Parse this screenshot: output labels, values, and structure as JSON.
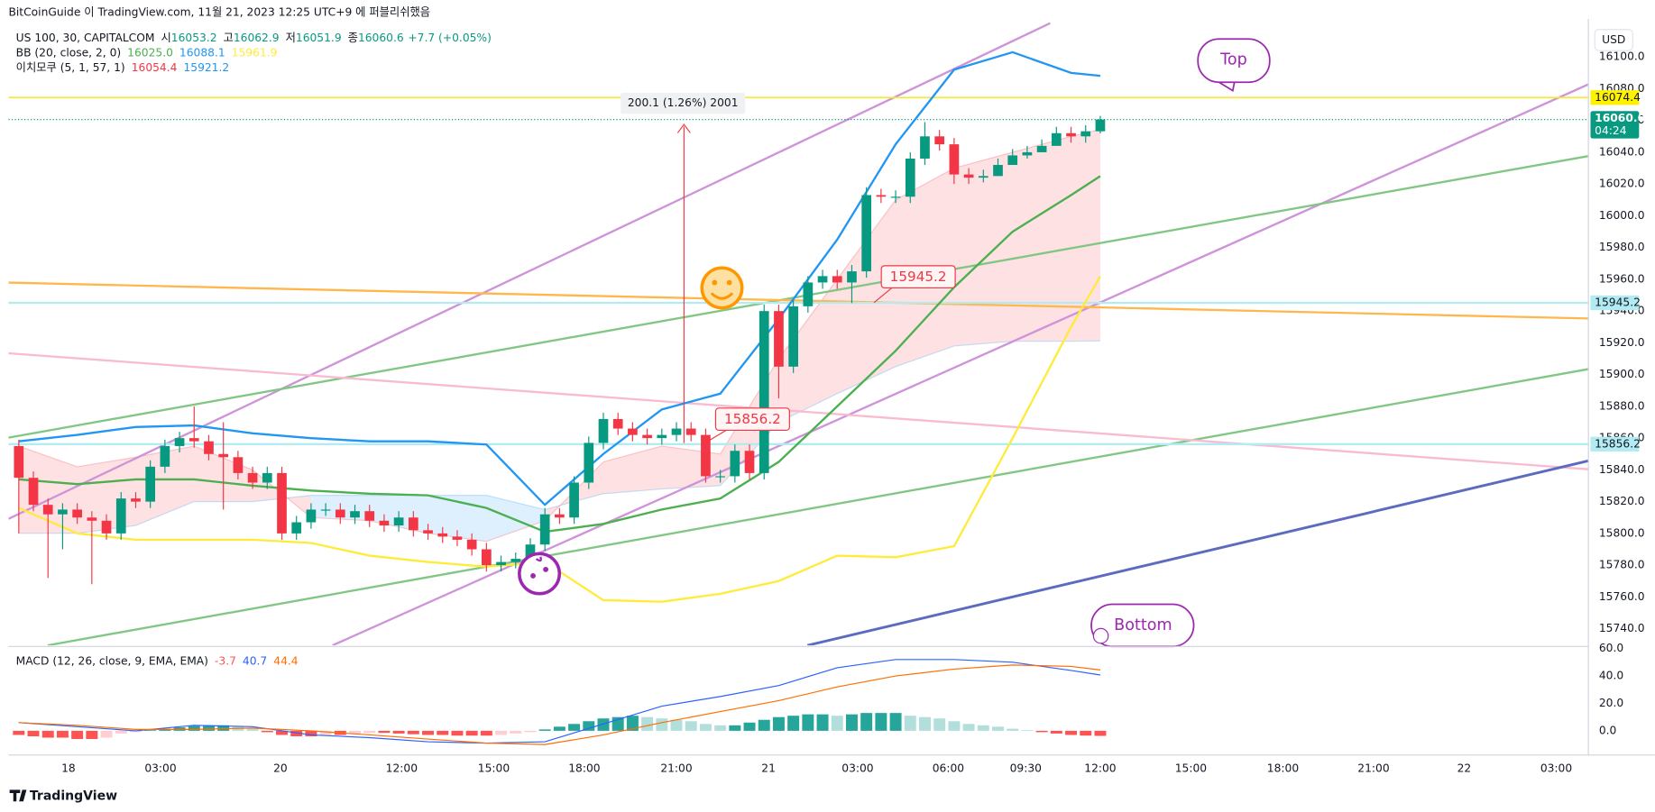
{
  "header": {
    "publisher": "BitCoinGuide 이 TradingView.com, 11월 21, 2023 12:25 UTC+9 에 퍼블리쉬했음"
  },
  "footer": {
    "brand": "TradingView"
  },
  "chart_data": [
    {
      "type": "candlestick",
      "title": "US 100, 30, CAPITALCOM",
      "legend_labels": {
        "open": "시",
        "high": "고",
        "low": "저",
        "close": "종"
      },
      "change": "+7.7 (+0.05%)",
      "countdown": "04:24",
      "unit_label": "USD",
      "up_color": "#089981",
      "down_color": "#f23645",
      "open": [
        15855,
        15835,
        15818,
        15812,
        15815,
        15810,
        15808,
        15800,
        15822,
        15820,
        15842,
        15855,
        15860,
        15858,
        15850,
        15848,
        15838,
        15832,
        15838,
        15800,
        15807,
        15815,
        15815,
        15810,
        15814,
        15808,
        15805,
        15810,
        15802,
        15800,
        15798,
        15796,
        15790,
        15780,
        15782,
        15784,
        15793,
        15812,
        15810,
        15832,
        15857,
        15872,
        15866,
        15862,
        15860,
        15862,
        15866,
        15862,
        15836,
        15836,
        15852,
        15838,
        15940,
        15905,
        15943,
        15958,
        15962,
        15958,
        15965,
        16013,
        16012,
        16012,
        16036,
        16050,
        16045,
        16026,
        16024,
        16025,
        16032,
        16038,
        16040,
        16044,
        16052,
        16050,
        16053.2
      ],
      "high": [
        15859,
        15839,
        15822,
        15819,
        15819,
        15814,
        15812,
        15826,
        15826,
        15846,
        15859,
        15864,
        15880,
        15862,
        15870,
        15852,
        15842,
        15842,
        15842,
        15811,
        15819,
        15819,
        15819,
        15818,
        15818,
        15812,
        15814,
        15814,
        15806,
        15804,
        15802,
        15800,
        15794,
        15786,
        15788,
        15797,
        15816,
        15816,
        15836,
        15861,
        15876,
        15876,
        15870,
        15866,
        15866,
        15870,
        15870,
        15866,
        15840,
        15856,
        15856,
        15944,
        15944,
        15947,
        15962,
        15966,
        15966,
        15969,
        16018,
        16017,
        16016,
        16040,
        16059,
        16054,
        16049,
        16030,
        16029,
        16036,
        16042,
        16044,
        16048,
        16056,
        16056,
        16057,
        16062.9
      ],
      "low": [
        15800,
        15814,
        15772,
        15790,
        15806,
        15768,
        15796,
        15796,
        15816,
        15816,
        15838,
        15851,
        15854,
        15846,
        15815,
        15834,
        15828,
        15828,
        15796,
        15796,
        15803,
        15811,
        15806,
        15806,
        15804,
        15801,
        15801,
        15798,
        15796,
        15794,
        15792,
        15786,
        15776,
        15776,
        15778,
        15780,
        15789,
        15806,
        15806,
        15828,
        15853,
        15862,
        15858,
        15856,
        15856,
        15858,
        15858,
        15832,
        15832,
        15832,
        15834,
        15834,
        15885,
        15901,
        15939,
        15954,
        15954,
        15945,
        15961,
        16008,
        16008,
        16008,
        16032,
        16041,
        16020,
        16020,
        16021,
        16028,
        16034,
        16036,
        16040,
        16046,
        16046,
        16046,
        16051.9
      ],
      "close": [
        15835,
        15818,
        15812,
        15815,
        15810,
        15808,
        15800,
        15822,
        15820,
        15842,
        15855,
        15860,
        15858,
        15850,
        15848,
        15838,
        15832,
        15838,
        15800,
        15807,
        15815,
        15815,
        15810,
        15814,
        15808,
        15805,
        15810,
        15802,
        15800,
        15798,
        15796,
        15790,
        15780,
        15782,
        15784,
        15793,
        15812,
        15810,
        15832,
        15857,
        15872,
        15866,
        15862,
        15860,
        15862,
        15866,
        15862,
        15836,
        15836,
        15852,
        15838,
        15940,
        15905,
        15943,
        15958,
        15962,
        15958,
        15965,
        16013,
        16012,
        16012,
        16036,
        16050,
        16045,
        16026,
        16024,
        16025,
        16032,
        16038,
        16040,
        16044,
        16052,
        16050,
        16053.2,
        16060.6
      ],
      "bb": {
        "title": "BB (20, close, 2, 0)",
        "x": [
          0,
          4,
          8,
          12,
          16,
          20,
          24,
          28,
          32,
          36,
          40,
          44,
          48,
          52,
          56,
          60,
          64,
          68,
          72,
          74
        ],
        "series": [
          {
            "color": "#4caf50",
            "last_label": "16025.0",
            "values": [
              15834,
              15831,
              15834,
              15834,
              15830,
              15827,
              15825,
              15824,
              15816,
              15801,
              15806,
              15815,
              15822,
              15845,
              15880,
              15915,
              15955,
              15990,
              16013,
              16025
            ]
          },
          {
            "color": "#2196f3",
            "values": [
              15858,
              15862,
              15867,
              15868,
              15863,
              15860,
              15858,
              15858,
              15856,
              15818,
              15850,
              15878,
              15888,
              15935,
              15985,
              16045,
              16092,
              16103,
              16090,
              16088.1
            ]
          },
          {
            "color": "#ffeb3b",
            "values": [
              15816,
              15800,
              15796,
              15796,
              15796,
              15794,
              15786,
              15782,
              15779,
              15782,
              15758,
              15757,
              15762,
              15770,
              15786,
              15785,
              15792,
              15860,
              15930,
              15961.9
            ]
          }
        ]
      },
      "ichimoku": {
        "title": "이치모쿠 (5, 1, 57, 1)",
        "x": [
          0,
          4,
          8,
          12,
          16,
          20,
          24,
          28,
          32,
          36,
          40,
          44,
          48,
          52,
          56,
          60,
          64,
          68,
          72,
          74
        ],
        "fill_colors": [
          "#f23645",
          "#2196f3"
        ],
        "series": [
          {
            "color": "#f23645",
            "values": [
              15855,
              15842,
              15848,
              15855,
              15840,
              15810,
              15808,
              15800,
              15795,
              15808,
              15845,
              15855,
              15850,
              15910,
              15960,
              16010,
              16030,
              16040,
              16050,
              16054.4
            ]
          },
          {
            "color": "#2196f3",
            "values": [
              15800,
              15800,
              15805,
              15820,
              15820,
              15824,
              15824,
              15824,
              15824,
              15815,
              15825,
              15828,
              15830,
              15870,
              15888,
              15905,
              15918,
              15921,
              15921,
              15921.2
            ]
          }
        ]
      },
      "price_lines": [
        {
          "value": 16074.4,
          "color": "#f5e642",
          "badge_color": "#fff200"
        },
        {
          "value": 15945.2,
          "color": "#b2ebf2",
          "badge_color": "#b2ebf2"
        },
        {
          "value": 15856.2,
          "color": "#b2ebf2",
          "badge_color": "#b2ebf2"
        }
      ],
      "annotations": {
        "top": "Top",
        "bottom": "Bottom",
        "measure": "200.1 (1.26%) 2001"
      },
      "xlim": [
        -0.7,
        107.4
      ],
      "xticks": [
        {
          "value": 3.4,
          "label": "18"
        },
        {
          "value": 9.7,
          "label": "03:00"
        },
        {
          "value": 17.9,
          "label": "20"
        },
        {
          "value": 26.2,
          "label": "12:00"
        },
        {
          "value": 32.5,
          "label": "15:00"
        },
        {
          "value": 38.7,
          "label": "18:00"
        },
        {
          "value": 45.0,
          "label": "21:00"
        },
        {
          "value": 51.3,
          "label": "21"
        },
        {
          "value": 57.4,
          "label": "03:00"
        },
        {
          "value": 63.6,
          "label": "06:00"
        },
        {
          "value": 68.9,
          "label": "09:30"
        },
        {
          "value": 74.0,
          "label": "12:00"
        },
        {
          "value": 80.2,
          "label": "15:00"
        },
        {
          "value": 86.5,
          "label": "18:00"
        },
        {
          "value": 92.7,
          "label": "21:00"
        },
        {
          "value": 98.9,
          "label": "22"
        },
        {
          "value": 105.2,
          "label": "03:00"
        }
      ],
      "ylim": [
        15729.5,
        16123.9
      ],
      "yticks": [
        {
          "value": 16100,
          "label": "16100.0"
        },
        {
          "value": 16080,
          "label": "16080.0"
        },
        {
          "value": 16060,
          "label": "16060.0"
        },
        {
          "value": 16040,
          "label": "16040.0"
        },
        {
          "value": 16020,
          "label": "16020.0"
        },
        {
          "value": 16000,
          "label": "16000.0"
        },
        {
          "value": 15980,
          "label": "15980.0"
        },
        {
          "value": 15960,
          "label": "15960.0"
        },
        {
          "value": 15940,
          "label": "15940.0"
        },
        {
          "value": 15920,
          "label": "15920.0"
        },
        {
          "value": 15900,
          "label": "15900.0"
        },
        {
          "value": 15880,
          "label": "15880.0"
        },
        {
          "value": 15860,
          "label": "15860.0"
        },
        {
          "value": 15840,
          "label": "15840.0"
        },
        {
          "value": 15820,
          "label": "15820.0"
        },
        {
          "value": 15800,
          "label": "15800.0"
        },
        {
          "value": 15780,
          "label": "15780.0"
        },
        {
          "value": 15760,
          "label": "15760.0"
        },
        {
          "value": 15740,
          "label": "15740.0"
        }
      ],
      "grid": false
    },
    {
      "type": "macd",
      "title": "MACD (12, 26, close, 9, EMA, EMA)",
      "histogram": {
        "colors": [
          "#26a69a",
          "#b2dfdb",
          "#ff5252",
          "#ffcdd2"
        ],
        "values": [
          -3,
          -4,
          -5,
          -5,
          -6,
          -6,
          -5,
          -2,
          -1,
          0.5,
          1.5,
          2.5,
          3.5,
          4,
          4,
          3,
          1.5,
          -1,
          -3,
          -4,
          -4,
          -3,
          -3,
          -2,
          -1.5,
          -1.5,
          -2,
          -2.5,
          -3,
          -3,
          -3.5,
          -3.5,
          -3.5,
          -3,
          -2,
          -1,
          1,
          3,
          5,
          7,
          9,
          10,
          11,
          10,
          9,
          8,
          7,
          5,
          4,
          4,
          6,
          8,
          10,
          11,
          12,
          12,
          11,
          12,
          13,
          13,
          13,
          11,
          10,
          9,
          7,
          5,
          4,
          3,
          1.5,
          0.5,
          -1,
          -2,
          -3,
          -3.5,
          -3.7
        ]
      },
      "macd": {
        "color": "#2962ff",
        "x": [
          0,
          4,
          8,
          12,
          16,
          20,
          24,
          28,
          32,
          36,
          40,
          44,
          48,
          52,
          56,
          60,
          64,
          68,
          72,
          74
        ],
        "values": [
          6,
          3,
          0,
          4,
          3,
          -3,
          -5,
          -8,
          -9,
          -8,
          5,
          18,
          25,
          33,
          46,
          52,
          52,
          50,
          44,
          40.7
        ]
      },
      "signal": {
        "color": "#ff6d00",
        "x": [
          0,
          4,
          8,
          12,
          16,
          20,
          24,
          28,
          32,
          36,
          40,
          44,
          48,
          52,
          56,
          60,
          64,
          68,
          72,
          74
        ],
        "values": [
          6,
          4,
          1,
          1,
          2,
          0,
          -3,
          -6,
          -9,
          -10,
          -3,
          6,
          14,
          22,
          32,
          40,
          45,
          48,
          47,
          44.4
        ]
      },
      "ylim": [
        -17.7,
        60.8
      ],
      "yticks": [
        {
          "value": 60,
          "label": "60.0"
        },
        {
          "value": 40,
          "label": "40.0"
        },
        {
          "value": 20,
          "label": "20.0"
        },
        {
          "value": 0,
          "label": "0.0"
        }
      ]
    }
  ]
}
